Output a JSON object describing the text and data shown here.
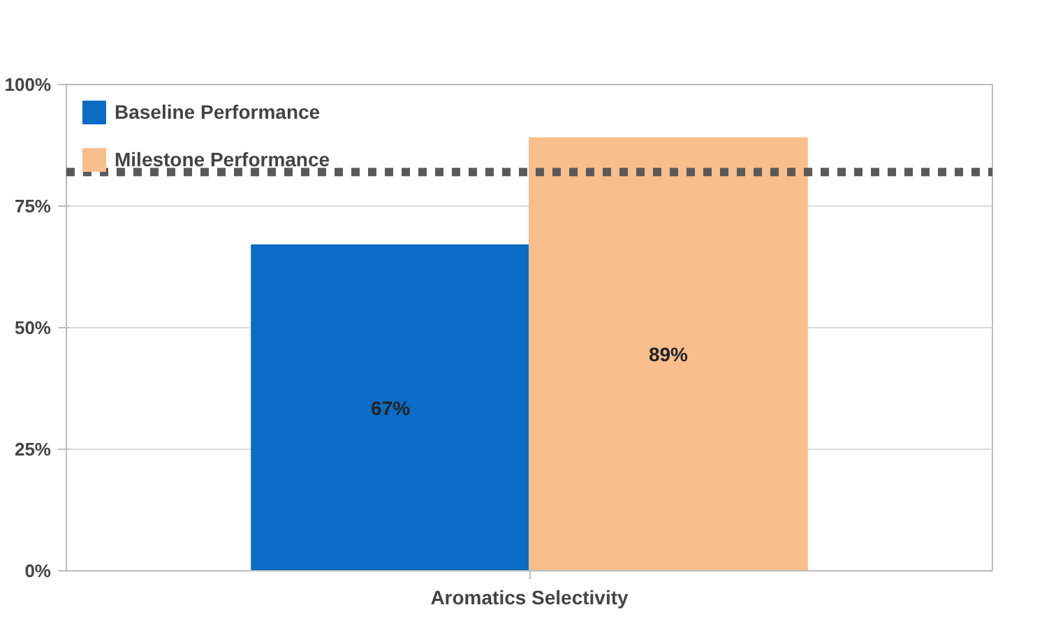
{
  "chart_data": {
    "type": "bar",
    "xlabel": "Aromatics Selectivity",
    "categories": [
      null
    ],
    "series": [
      {
        "name": "Baseline Performance",
        "color": "#0a6cc4",
        "values": [
          67
        ]
      },
      {
        "name": "Milestone Performance",
        "color": "#f8be8c",
        "values": [
          89
        ]
      }
    ],
    "ylim": [
      0,
      100
    ],
    "yticks": [
      {
        "value": 0,
        "label": "0%"
      },
      {
        "value": 25,
        "label": "25%"
      },
      {
        "value": 50,
        "label": "50%"
      },
      {
        "value": 75,
        "label": "75%"
      },
      {
        "value": 100,
        "label": "100%"
      }
    ],
    "value_labels": [
      [
        "67%"
      ],
      [
        "89%"
      ]
    ],
    "ref_lines": [
      {
        "axis": "y",
        "value": 82,
        "color": "#595959",
        "line_style": "dashed"
      }
    ],
    "grid": "y",
    "legend": "top left"
  }
}
